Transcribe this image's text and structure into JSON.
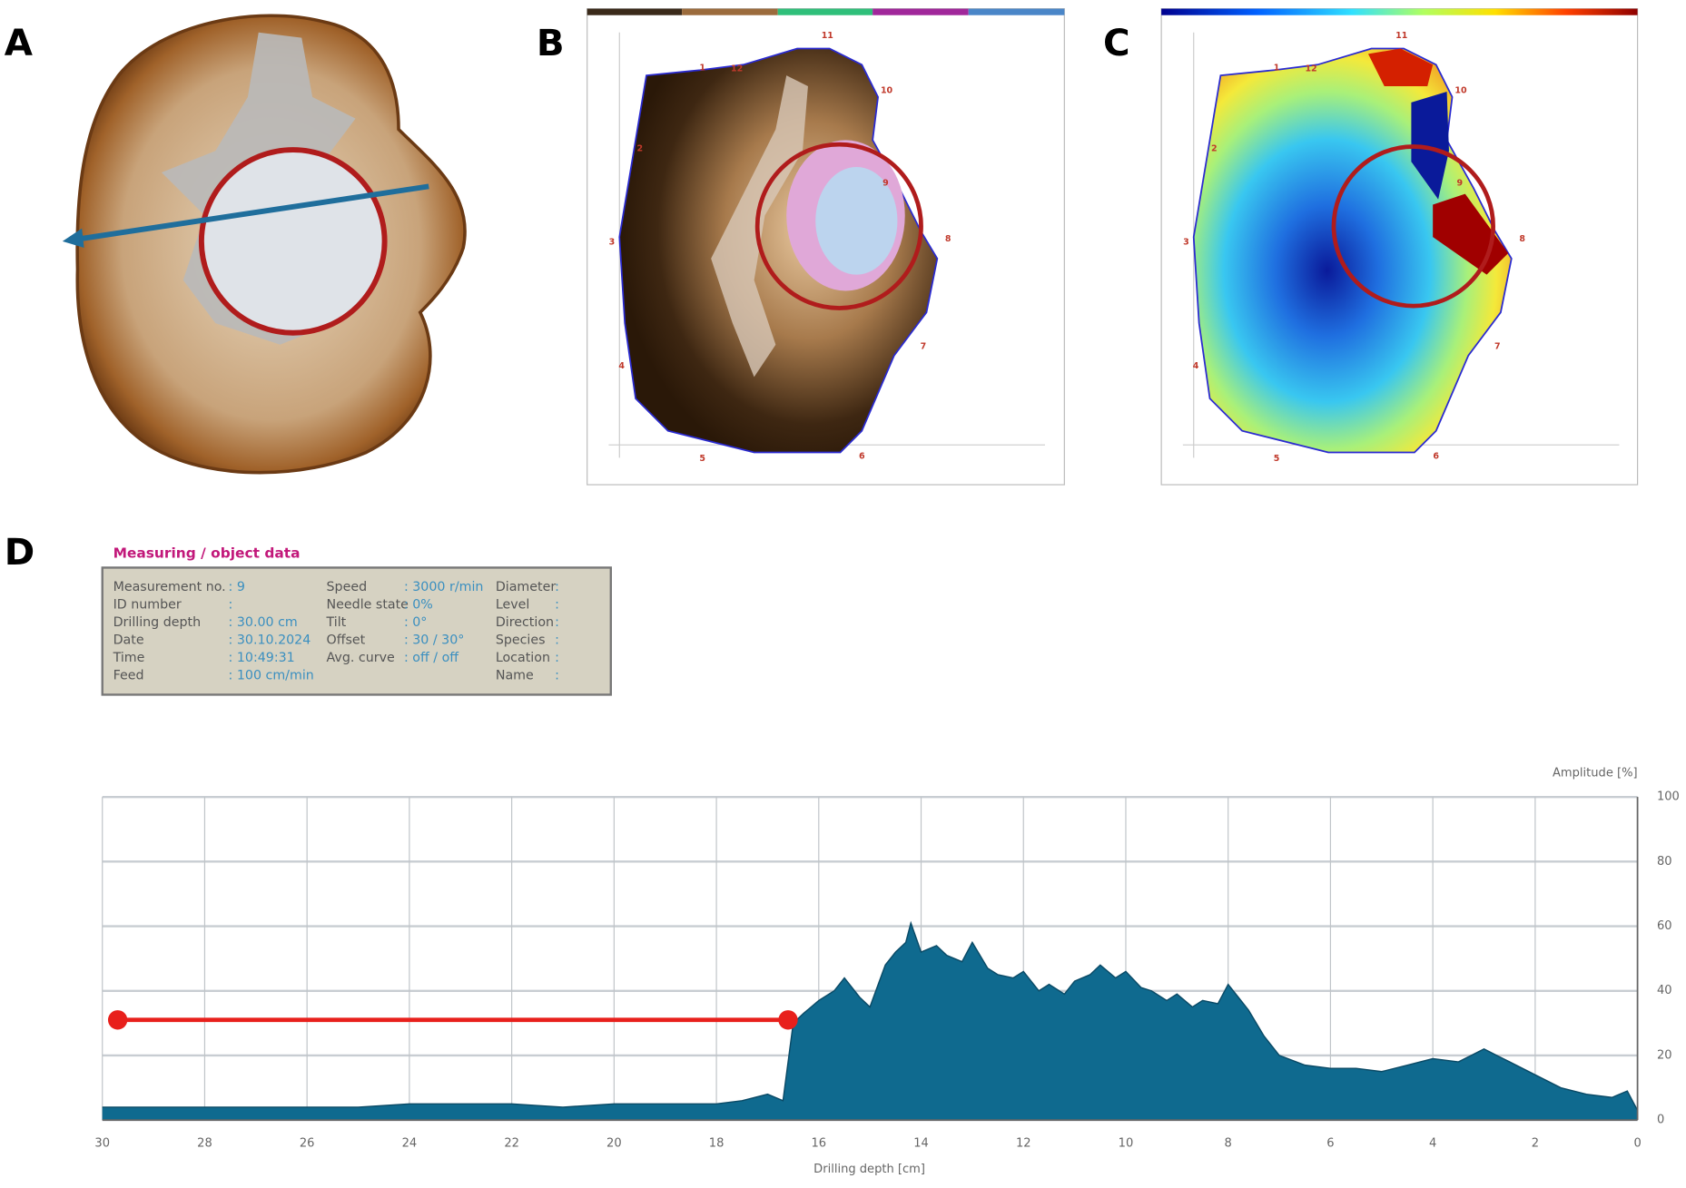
{
  "panels": {
    "a": {
      "label": "A"
    },
    "b": {
      "label": "B",
      "sensor_labels": [
        "1",
        "2",
        "3",
        "4",
        "5",
        "6",
        "7",
        "8",
        "9",
        "10",
        "11",
        "12"
      ]
    },
    "c": {
      "label": "C",
      "sensor_labels": [
        "1",
        "2",
        "3",
        "4",
        "5",
        "6",
        "7",
        "8",
        "9",
        "10",
        "11",
        "12"
      ]
    },
    "d": {
      "label": "D"
    }
  },
  "info_table": {
    "title": "Measuring / object data",
    "columns": [
      [
        {
          "key": "Measurement no.",
          "value": ": 9"
        },
        {
          "key": "ID number",
          "value": ":"
        },
        {
          "key": "Drilling depth",
          "value": ": 30.00 cm"
        },
        {
          "key": "Date",
          "value": ": 30.10.2024"
        },
        {
          "key": "Time",
          "value": ": 10:49:31"
        },
        {
          "key": "Feed",
          "value": ": 100 cm/min"
        }
      ],
      [
        {
          "key": "Speed",
          "value": ": 3000 r/min"
        },
        {
          "key": "Needle state",
          "value": ": 0%"
        },
        {
          "key": "Tilt",
          "value": ": 0°"
        },
        {
          "key": "Offset",
          "value": ": 30 / 30°"
        },
        {
          "key": "Avg. curve",
          "value": ": off / off"
        }
      ],
      [
        {
          "key": "Diameter",
          "value": ":"
        },
        {
          "key": "Level",
          "value": ":"
        },
        {
          "key": "Direction",
          "value": ":"
        },
        {
          "key": "Species",
          "value": ":"
        },
        {
          "key": "Location",
          "value": ":"
        },
        {
          "key": "Name",
          "value": ":"
        }
      ]
    ]
  },
  "chart_data": {
    "type": "area",
    "x_label": "Drilling depth [cm]",
    "y_label": "Amplitude [%]",
    "xlim": [
      30,
      0
    ],
    "xticks": [
      30,
      28,
      26,
      24,
      22,
      20,
      18,
      16,
      14,
      12,
      10,
      8,
      6,
      4,
      2,
      0
    ],
    "ylim": [
      0,
      100
    ],
    "yticks": [
      0,
      20,
      40,
      60,
      80,
      100
    ],
    "grid": true,
    "color": "#0f6a8f",
    "x": [
      30,
      29,
      28,
      27,
      26,
      25,
      24,
      23,
      22,
      21,
      20,
      19,
      18,
      17.5,
      17,
      16.7,
      16.5,
      16.3,
      16,
      15.7,
      15.5,
      15.2,
      15,
      14.7,
      14.5,
      14.3,
      14.2,
      14,
      13.7,
      13.5,
      13.2,
      13,
      12.7,
      12.5,
      12.2,
      12,
      11.7,
      11.5,
      11.2,
      11,
      10.7,
      10.5,
      10.2,
      10,
      9.7,
      9.5,
      9.2,
      9,
      8.7,
      8.5,
      8.2,
      8,
      7.8,
      7.6,
      7.3,
      7,
      6.5,
      6,
      5.5,
      5,
      4.5,
      4,
      3.5,
      3,
      2.5,
      2,
      1.5,
      1,
      0.5,
      0.2,
      0
    ],
    "values": [
      4,
      4,
      4,
      4,
      4,
      4,
      5,
      5,
      5,
      4,
      5,
      5,
      5,
      6,
      8,
      6,
      30,
      33,
      37,
      40,
      44,
      38,
      35,
      48,
      52,
      55,
      61,
      52,
      54,
      51,
      49,
      55,
      47,
      45,
      44,
      46,
      40,
      42,
      39,
      43,
      45,
      48,
      44,
      46,
      41,
      40,
      37,
      39,
      35,
      37,
      36,
      42,
      38,
      34,
      26,
      20,
      17,
      16,
      16,
      15,
      17,
      19,
      18,
      22,
      18,
      14,
      10,
      8,
      7,
      9,
      3
    ],
    "range_marker": {
      "x": [
        29.7,
        16.6
      ],
      "y": 31,
      "color": "#e8201c"
    }
  }
}
